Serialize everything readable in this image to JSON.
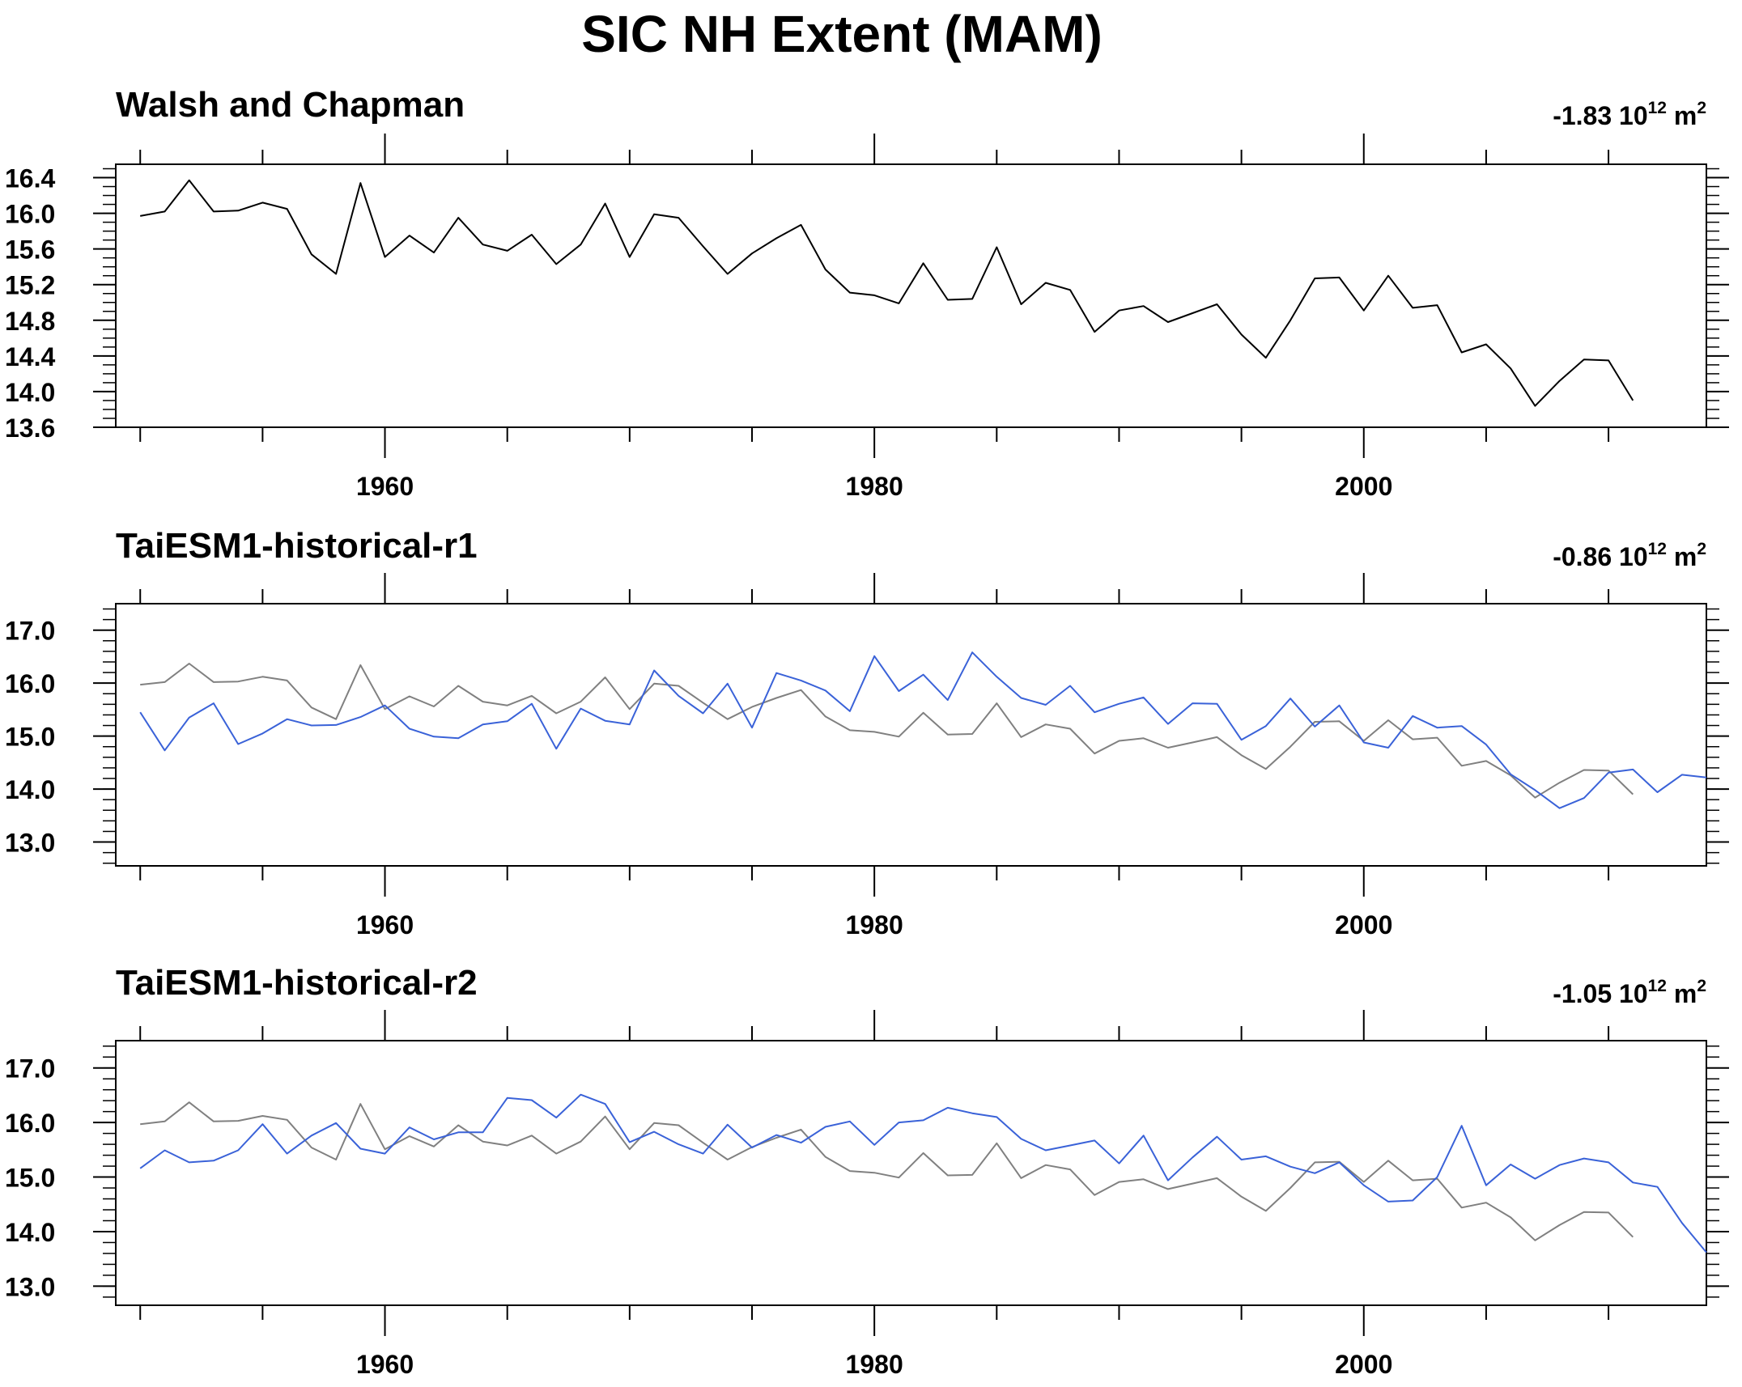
{
  "figure_title": "SIC NH Extent (MAM)",
  "colors": {
    "observation": "#000000",
    "reference": "#808080",
    "model": "#3a62d8",
    "frame": "#000000"
  },
  "chart_data": [
    {
      "type": "line",
      "title": "Walsh and Chapman",
      "trend": {
        "value": "-1.83",
        "base": "10",
        "exponent": "12",
        "unit": "m",
        "unit_exponent": "2"
      },
      "xlim": [
        1949,
        2014
      ],
      "ylim": [
        13.6,
        16.55
      ],
      "x_major_ticks": [
        1960,
        1980,
        2000
      ],
      "x_minor_step": 5,
      "y_ticks": [
        13.6,
        14.0,
        14.4,
        14.8,
        15.2,
        15.6,
        16.0,
        16.4
      ],
      "y_minor_step": 0.1,
      "xlabel": "",
      "ylabel": "",
      "grid": false,
      "series": [
        {
          "role": "observation",
          "x_start": 1950,
          "values": [
            15.97,
            16.02,
            16.37,
            16.02,
            16.03,
            16.12,
            16.05,
            15.54,
            15.32,
            16.34,
            15.51,
            15.75,
            15.56,
            15.95,
            15.65,
            15.58,
            15.76,
            15.43,
            15.65,
            16.11,
            15.51,
            15.99,
            15.95,
            15.63,
            15.32,
            15.55,
            15.72,
            15.87,
            15.37,
            15.11,
            15.08,
            14.99,
            15.44,
            15.03,
            15.04,
            15.62,
            14.98,
            15.22,
            15.14,
            14.67,
            14.91,
            14.96,
            14.78,
            14.88,
            14.98,
            14.64,
            14.38,
            14.8,
            15.27,
            15.28,
            14.91,
            15.3,
            14.94,
            14.97,
            14.44,
            14.53,
            14.26,
            13.84,
            14.12,
            14.36,
            14.35,
            13.9
          ]
        }
      ]
    },
    {
      "type": "line",
      "title": "TaiESM1-historical-r1",
      "trend": {
        "value": "-0.86",
        "base": "10",
        "exponent": "12",
        "unit": "m",
        "unit_exponent": "2"
      },
      "xlim": [
        1949,
        2014
      ],
      "ylim": [
        12.55,
        17.5
      ],
      "x_major_ticks": [
        1960,
        1980,
        2000
      ],
      "x_minor_step": 5,
      "y_ticks": [
        13.0,
        14.0,
        15.0,
        16.0,
        17.0
      ],
      "y_minor_step": 0.2,
      "xlabel": "",
      "ylabel": "",
      "grid": false,
      "series": [
        {
          "role": "reference",
          "x_start": 1950,
          "values": [
            15.97,
            16.02,
            16.37,
            16.02,
            16.03,
            16.12,
            16.05,
            15.54,
            15.32,
            16.34,
            15.51,
            15.75,
            15.56,
            15.95,
            15.65,
            15.58,
            15.76,
            15.43,
            15.65,
            16.11,
            15.51,
            15.99,
            15.95,
            15.63,
            15.32,
            15.55,
            15.72,
            15.87,
            15.37,
            15.11,
            15.08,
            14.99,
            15.44,
            15.03,
            15.04,
            15.62,
            14.98,
            15.22,
            15.14,
            14.67,
            14.91,
            14.96,
            14.78,
            14.88,
            14.98,
            14.64,
            14.38,
            14.8,
            15.27,
            15.28,
            14.91,
            15.3,
            14.94,
            14.97,
            14.44,
            14.53,
            14.26,
            13.84,
            14.12,
            14.36,
            14.35,
            13.9
          ]
        },
        {
          "role": "model",
          "x_start": 1950,
          "values": [
            15.45,
            14.73,
            15.35,
            15.62,
            14.85,
            15.05,
            15.32,
            15.2,
            15.21,
            15.36,
            15.58,
            15.14,
            14.99,
            14.96,
            15.22,
            15.28,
            15.61,
            14.76,
            15.52,
            15.29,
            15.22,
            16.24,
            15.76,
            15.43,
            15.99,
            15.16,
            16.19,
            16.05,
            15.86,
            15.47,
            16.51,
            15.85,
            16.16,
            15.68,
            16.58,
            16.12,
            15.72,
            15.59,
            15.95,
            15.45,
            15.61,
            15.73,
            15.23,
            15.62,
            15.61,
            14.93,
            15.19,
            15.71,
            15.18,
            15.58,
            14.88,
            14.78,
            15.38,
            15.16,
            15.19,
            14.84,
            14.28,
            13.98,
            13.64,
            13.83,
            14.31,
            14.37,
            13.94,
            14.27,
            14.22
          ]
        }
      ]
    },
    {
      "type": "line",
      "title": "TaiESM1-historical-r2",
      "trend": {
        "value": "-1.05",
        "base": "10",
        "exponent": "12",
        "unit": "m",
        "unit_exponent": "2"
      },
      "xlim": [
        1949,
        2014
      ],
      "ylim": [
        12.65,
        17.5
      ],
      "x_major_ticks": [
        1960,
        1980,
        2000
      ],
      "x_minor_step": 5,
      "y_ticks": [
        13.0,
        14.0,
        15.0,
        16.0,
        17.0
      ],
      "y_minor_step": 0.2,
      "xlabel": "",
      "ylabel": "",
      "grid": false,
      "series": [
        {
          "role": "reference",
          "x_start": 1950,
          "values": [
            15.97,
            16.02,
            16.37,
            16.02,
            16.03,
            16.12,
            16.05,
            15.54,
            15.32,
            16.34,
            15.51,
            15.75,
            15.56,
            15.95,
            15.65,
            15.58,
            15.76,
            15.43,
            15.65,
            16.11,
            15.51,
            15.99,
            15.95,
            15.63,
            15.32,
            15.55,
            15.72,
            15.87,
            15.37,
            15.11,
            15.08,
            14.99,
            15.44,
            15.03,
            15.04,
            15.62,
            14.98,
            15.22,
            15.14,
            14.67,
            14.91,
            14.96,
            14.78,
            14.88,
            14.98,
            14.64,
            14.38,
            14.8,
            15.27,
            15.28,
            14.91,
            15.3,
            14.94,
            14.97,
            14.44,
            14.53,
            14.26,
            13.84,
            14.12,
            14.36,
            14.35,
            13.9
          ]
        },
        {
          "role": "model",
          "x_start": 1950,
          "values": [
            15.16,
            15.49,
            15.27,
            15.3,
            15.49,
            15.97,
            15.43,
            15.76,
            15.99,
            15.52,
            15.43,
            15.91,
            15.69,
            15.82,
            15.82,
            16.45,
            16.41,
            16.09,
            16.51,
            16.34,
            15.64,
            15.83,
            15.6,
            15.43,
            15.96,
            15.54,
            15.77,
            15.63,
            15.92,
            16.02,
            15.59,
            16.0,
            16.04,
            16.27,
            16.17,
            16.1,
            15.7,
            15.49,
            15.58,
            15.67,
            15.25,
            15.76,
            14.94,
            15.36,
            15.74,
            15.32,
            15.38,
            15.19,
            15.07,
            15.27,
            14.85,
            14.55,
            14.57,
            15.0,
            15.94,
            14.85,
            15.23,
            14.97,
            15.22,
            15.34,
            15.27,
            14.9,
            14.82,
            14.16,
            13.62
          ]
        }
      ]
    }
  ]
}
